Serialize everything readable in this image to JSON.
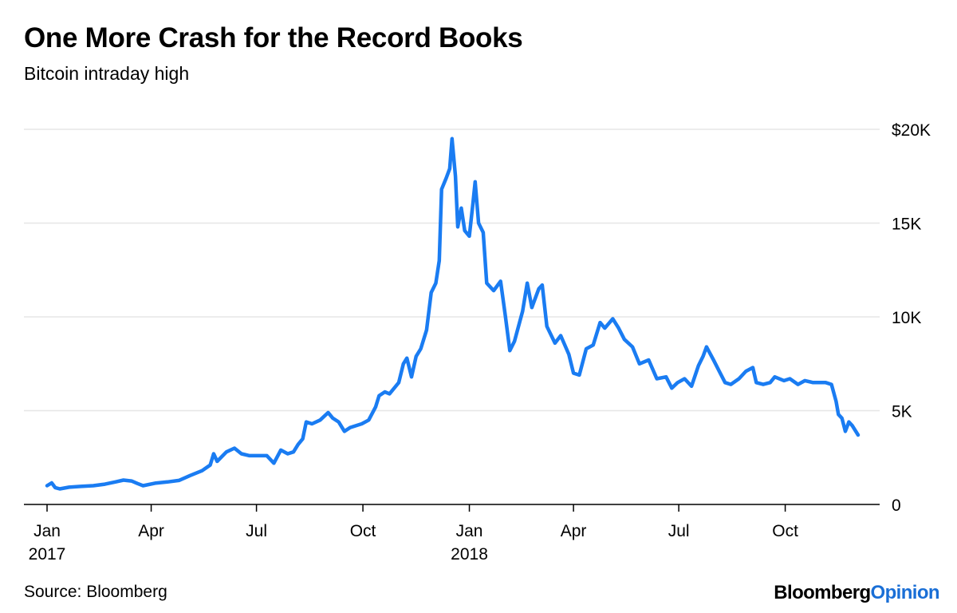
{
  "header": {
    "title": "One More Crash for the Record Books",
    "subtitle": "Bitcoin intraday high"
  },
  "footer": {
    "source": "Source: Bloomberg",
    "brand_primary": "Bloomberg",
    "brand_secondary": "Opinion"
  },
  "colors": {
    "line": "#1a7cf2",
    "grid": "#e6e6e6",
    "axis": "#000000",
    "brand_accent": "#1a6fd6"
  },
  "chart_data": {
    "type": "line",
    "title": "One More Crash for the Record Books",
    "subtitle": "Bitcoin intraday high",
    "xlabel": "",
    "ylabel": "",
    "xlim": [
      "2017-01-01",
      "2018-11-25"
    ],
    "ylim": [
      0,
      20000
    ],
    "grid": true,
    "y_axis_position": "right",
    "y_ticks": [
      {
        "value": 0,
        "label": "0"
      },
      {
        "value": 5000,
        "label": "5K"
      },
      {
        "value": 10000,
        "label": "10K"
      },
      {
        "value": 15000,
        "label": "15K"
      },
      {
        "value": 20000,
        "label": "$20K"
      }
    ],
    "x_ticks": [
      {
        "date": "2017-01-01",
        "label": "Jan",
        "year": "2017"
      },
      {
        "date": "2017-04-01",
        "label": "Apr",
        "year": ""
      },
      {
        "date": "2017-07-01",
        "label": "Jul",
        "year": ""
      },
      {
        "date": "2017-10-01",
        "label": "Oct",
        "year": ""
      },
      {
        "date": "2018-01-01",
        "label": "Jan",
        "year": "2018"
      },
      {
        "date": "2018-04-01",
        "label": "Apr",
        "year": ""
      },
      {
        "date": "2018-07-01",
        "label": "Jul",
        "year": ""
      },
      {
        "date": "2018-10-01",
        "label": "Oct",
        "year": ""
      }
    ],
    "series": [
      {
        "points": [
          [
            "2017-01-01",
            1000
          ],
          [
            "2017-01-05",
            1150
          ],
          [
            "2017-01-08",
            900
          ],
          [
            "2017-01-12",
            830
          ],
          [
            "2017-01-20",
            920
          ],
          [
            "2017-01-30",
            960
          ],
          [
            "2017-02-10",
            1000
          ],
          [
            "2017-02-20",
            1080
          ],
          [
            "2017-03-01",
            1200
          ],
          [
            "2017-03-08",
            1300
          ],
          [
            "2017-03-15",
            1250
          ],
          [
            "2017-03-20",
            1120
          ],
          [
            "2017-03-25",
            1000
          ],
          [
            "2017-04-05",
            1140
          ],
          [
            "2017-04-15",
            1200
          ],
          [
            "2017-04-25",
            1280
          ],
          [
            "2017-05-05",
            1550
          ],
          [
            "2017-05-15",
            1800
          ],
          [
            "2017-05-22",
            2100
          ],
          [
            "2017-05-25",
            2700
          ],
          [
            "2017-05-28",
            2300
          ],
          [
            "2017-06-05",
            2800
          ],
          [
            "2017-06-12",
            3000
          ],
          [
            "2017-06-18",
            2700
          ],
          [
            "2017-06-25",
            2600
          ],
          [
            "2017-07-01",
            2600
          ],
          [
            "2017-07-10",
            2600
          ],
          [
            "2017-07-16",
            2200
          ],
          [
            "2017-07-22",
            2900
          ],
          [
            "2017-07-28",
            2700
          ],
          [
            "2017-08-02",
            2800
          ],
          [
            "2017-08-06",
            3200
          ],
          [
            "2017-08-10",
            3500
          ],
          [
            "2017-08-13",
            4400
          ],
          [
            "2017-08-18",
            4300
          ],
          [
            "2017-08-25",
            4500
          ],
          [
            "2017-09-01",
            4900
          ],
          [
            "2017-09-05",
            4600
          ],
          [
            "2017-09-10",
            4400
          ],
          [
            "2017-09-15",
            3900
          ],
          [
            "2017-09-20",
            4100
          ],
          [
            "2017-09-30",
            4300
          ],
          [
            "2017-10-06",
            4500
          ],
          [
            "2017-10-12",
            5200
          ],
          [
            "2017-10-15",
            5800
          ],
          [
            "2017-10-20",
            6000
          ],
          [
            "2017-10-24",
            5900
          ],
          [
            "2017-11-01",
            6500
          ],
          [
            "2017-11-05",
            7500
          ],
          [
            "2017-11-08",
            7800
          ],
          [
            "2017-11-12",
            6800
          ],
          [
            "2017-11-16",
            7900
          ],
          [
            "2017-11-20",
            8300
          ],
          [
            "2017-11-25",
            9300
          ],
          [
            "2017-11-29",
            11300
          ],
          [
            "2017-12-03",
            11800
          ],
          [
            "2017-12-06",
            13000
          ],
          [
            "2017-12-08",
            16800
          ],
          [
            "2017-12-12",
            17400
          ],
          [
            "2017-12-15",
            17900
          ],
          [
            "2017-12-17",
            19500
          ],
          [
            "2017-12-20",
            17500
          ],
          [
            "2017-12-22",
            14800
          ],
          [
            "2017-12-25",
            15800
          ],
          [
            "2017-12-28",
            14600
          ],
          [
            "2018-01-01",
            14300
          ],
          [
            "2018-01-04",
            16000
          ],
          [
            "2018-01-06",
            17200
          ],
          [
            "2018-01-09",
            15000
          ],
          [
            "2018-01-13",
            14500
          ],
          [
            "2018-01-16",
            11800
          ],
          [
            "2018-01-22",
            11400
          ],
          [
            "2018-01-28",
            11900
          ],
          [
            "2018-02-01",
            10100
          ],
          [
            "2018-02-05",
            8200
          ],
          [
            "2018-02-09",
            8700
          ],
          [
            "2018-02-16",
            10300
          ],
          [
            "2018-02-20",
            11800
          ],
          [
            "2018-02-24",
            10500
          ],
          [
            "2018-03-02",
            11500
          ],
          [
            "2018-03-05",
            11700
          ],
          [
            "2018-03-09",
            9500
          ],
          [
            "2018-03-16",
            8600
          ],
          [
            "2018-03-21",
            9000
          ],
          [
            "2018-03-28",
            8000
          ],
          [
            "2018-04-01",
            7000
          ],
          [
            "2018-04-06",
            6900
          ],
          [
            "2018-04-12",
            8300
          ],
          [
            "2018-04-18",
            8500
          ],
          [
            "2018-04-24",
            9700
          ],
          [
            "2018-04-28",
            9400
          ],
          [
            "2018-05-05",
            9900
          ],
          [
            "2018-05-10",
            9400
          ],
          [
            "2018-05-15",
            8800
          ],
          [
            "2018-05-22",
            8400
          ],
          [
            "2018-05-28",
            7500
          ],
          [
            "2018-06-05",
            7700
          ],
          [
            "2018-06-12",
            6700
          ],
          [
            "2018-06-20",
            6800
          ],
          [
            "2018-06-25",
            6200
          ],
          [
            "2018-06-30",
            6500
          ],
          [
            "2018-07-06",
            6700
          ],
          [
            "2018-07-12",
            6300
          ],
          [
            "2018-07-18",
            7400
          ],
          [
            "2018-07-22",
            7900
          ],
          [
            "2018-07-25",
            8400
          ],
          [
            "2018-07-31",
            7700
          ],
          [
            "2018-08-05",
            7100
          ],
          [
            "2018-08-10",
            6500
          ],
          [
            "2018-08-15",
            6400
          ],
          [
            "2018-08-22",
            6700
          ],
          [
            "2018-08-28",
            7100
          ],
          [
            "2018-09-03",
            7300
          ],
          [
            "2018-09-06",
            6500
          ],
          [
            "2018-09-12",
            6400
          ],
          [
            "2018-09-18",
            6500
          ],
          [
            "2018-09-22",
            6800
          ],
          [
            "2018-09-30",
            6600
          ],
          [
            "2018-10-05",
            6700
          ],
          [
            "2018-10-12",
            6400
          ],
          [
            "2018-10-18",
            6600
          ],
          [
            "2018-10-25",
            6500
          ],
          [
            "2018-11-05",
            6500
          ],
          [
            "2018-11-10",
            6400
          ],
          [
            "2018-11-14",
            5500
          ],
          [
            "2018-11-16",
            4800
          ],
          [
            "2018-11-19",
            4600
          ],
          [
            "2018-11-22",
            3900
          ],
          [
            "2018-11-25",
            4400
          ],
          [
            "2018-11-28",
            4200
          ],
          [
            "2018-12-03",
            3700
          ]
        ]
      }
    ]
  }
}
